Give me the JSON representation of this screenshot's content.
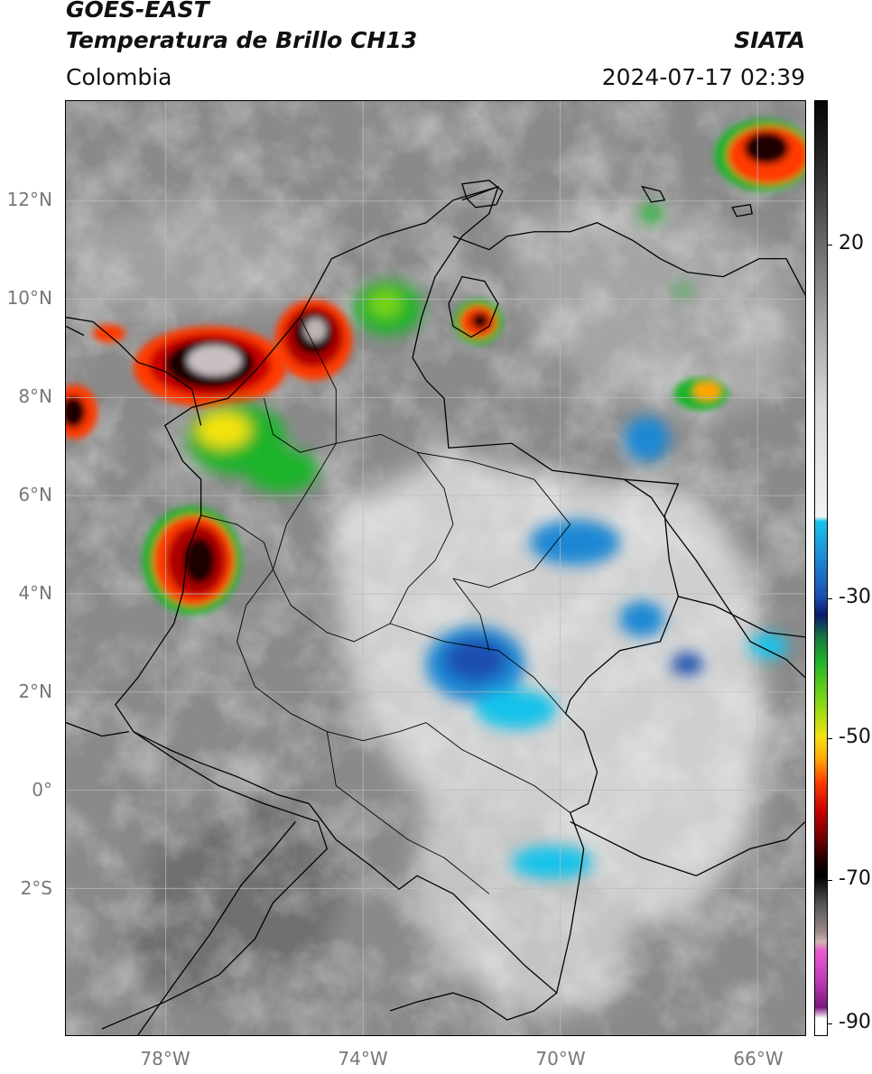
{
  "header": {
    "satellite": "GOES-EAST",
    "product": "Temperatura de Brillo CH13",
    "region": "Colombia",
    "organization": "SIATA",
    "datetime": "2024-07-17 02:39"
  },
  "axes": {
    "latitude_labels": [
      "12°N",
      "10°N",
      "8°N",
      "6°N",
      "4°N",
      "2°N",
      "0°",
      "2°S"
    ],
    "longitude_labels": [
      "78°W",
      "74°W",
      "70°W",
      "66°W"
    ]
  },
  "colorbar": {
    "labels": [
      "20",
      "-30",
      "-50",
      "-70",
      "-90"
    ]
  },
  "colors": {
    "background_gray": "#8a8a8a",
    "cold_cloud_blue": "#1e88d4",
    "deep_convection_red": "#c70000",
    "border_line": "#000000"
  }
}
